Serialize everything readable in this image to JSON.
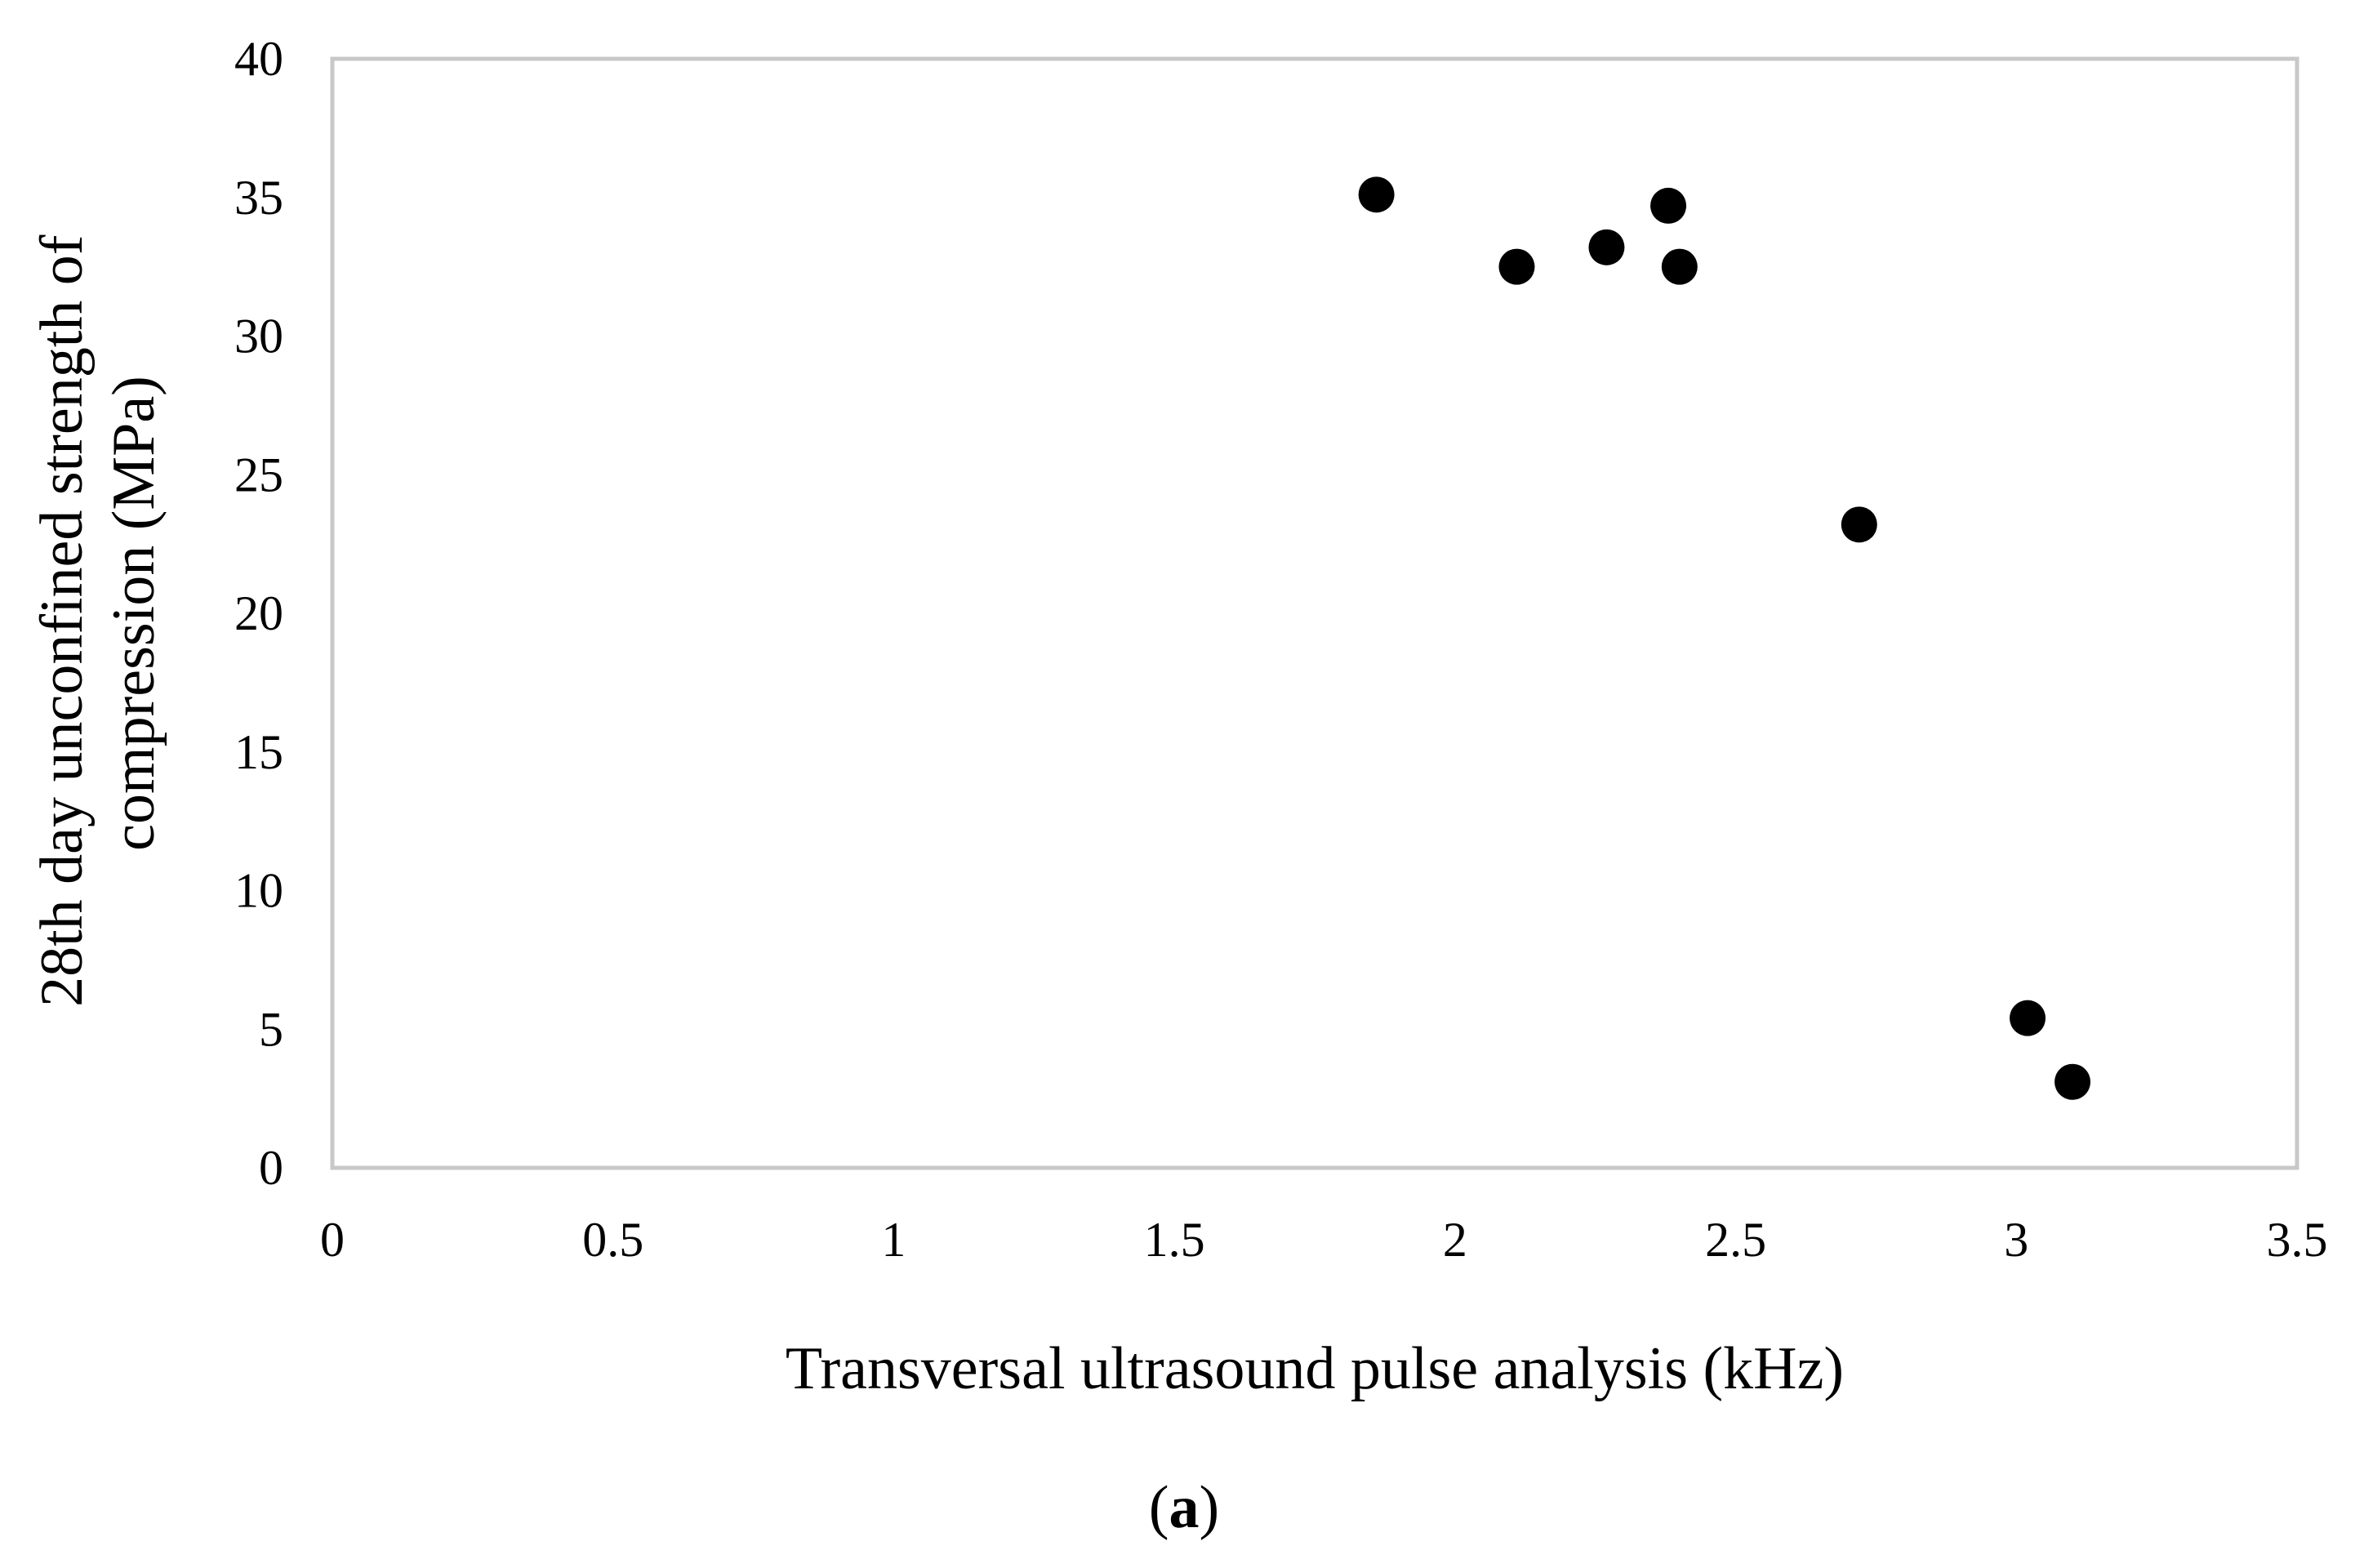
{
  "chart_data": {
    "type": "scatter",
    "xlabel": "Transversal ultrasound pulse analysis (kHz)",
    "ylabel_lines": [
      "28th day unconfined strength of",
      "compression (MPa)"
    ],
    "xlim": [
      0,
      3.5
    ],
    "ylim": [
      0,
      40
    ],
    "x_ticks": [
      "0",
      "0.5",
      "1",
      "1.5",
      "2",
      "2.5",
      "3",
      "3.5"
    ],
    "y_ticks": [
      "0",
      "5",
      "10",
      "15",
      "20",
      "25",
      "30",
      "35",
      "40"
    ],
    "grid": false,
    "marker_color": "#000000",
    "frame_color": "#c8c8c8",
    "points": [
      {
        "x": 1.86,
        "y": 35.1
      },
      {
        "x": 2.11,
        "y": 32.5
      },
      {
        "x": 2.27,
        "y": 33.2
      },
      {
        "x": 2.38,
        "y": 34.7
      },
      {
        "x": 2.4,
        "y": 32.5
      },
      {
        "x": 2.72,
        "y": 23.2
      },
      {
        "x": 3.02,
        "y": 5.4
      },
      {
        "x": 3.1,
        "y": 3.1
      }
    ]
  },
  "caption": {
    "open": "(",
    "letter": "a",
    "close": ")"
  }
}
